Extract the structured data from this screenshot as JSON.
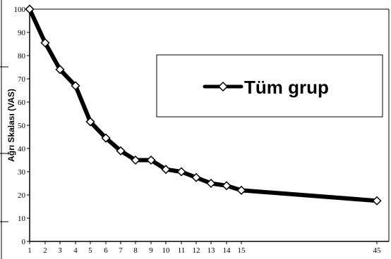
{
  "chart_data": {
    "type": "line",
    "title": "",
    "xlabel": "",
    "ylabel": "Ağrı Skalası (VAS)",
    "x": [
      1,
      2,
      3,
      4,
      5,
      6,
      7,
      8,
      9,
      10,
      11,
      12,
      13,
      14,
      15,
      45
    ],
    "x_tick_labels": [
      "1",
      "2",
      "3",
      "4",
      "5",
      "6",
      "7",
      "8",
      "9",
      "10",
      "11",
      "12",
      "13",
      "14",
      "15",
      "45"
    ],
    "ylim": [
      0,
      100
    ],
    "y_ticks": [
      0,
      10,
      20,
      30,
      40,
      50,
      60,
      70,
      80,
      90,
      100
    ],
    "y_tick_labels": [
      "0",
      "10",
      "20",
      "30",
      "40",
      "50",
      "60",
      "70",
      "80",
      "90",
      "100"
    ],
    "series": [
      {
        "name": "Tüm grup",
        "values": [
          100,
          85.5,
          74,
          67,
          51.5,
          44.5,
          39,
          35,
          35,
          31,
          30,
          27.5,
          25,
          24,
          22,
          17.5
        ],
        "color": "#000000",
        "marker": "diamond"
      }
    ],
    "grid": false,
    "legend": "right"
  }
}
